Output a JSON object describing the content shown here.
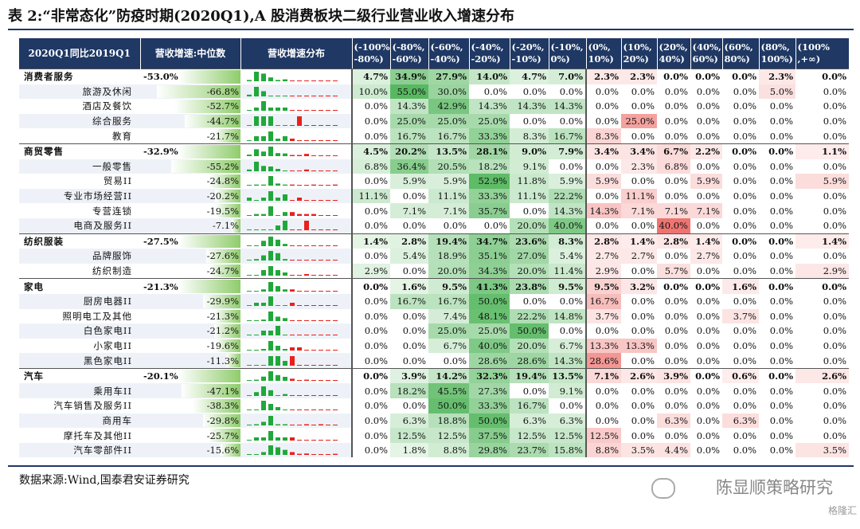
{
  "title": "表 2:“非常态化”防疫时期(2020Q1),A 股消费板块二级行业营业收入增速分布",
  "header": {
    "col1": "2020Q1同比2019Q1",
    "col2": "营收增速:中位数",
    "col3": "营收增速分布",
    "bins": [
      "(-100%, -80%)",
      "(-80%, -60%)",
      "(-60%, -40%)",
      "(-40%, -20%)",
      "(-20%, -10%)",
      "(-10%, 0%)",
      "(0%, 10%)",
      "(10%, 20%)",
      "(20%, 40%)",
      "(40%, 60%)",
      "(60%, 80%)",
      "(80%, 100%)",
      "(100% ,+∞)"
    ]
  },
  "rows": [
    {
      "name": "消费者服务",
      "group": true,
      "median": "-53.0%",
      "m": -53.0,
      "vals": [
        "4.7%",
        "34.9%",
        "27.9%",
        "14.0%",
        "4.7%",
        "7.0%",
        "2.3%",
        "2.3%",
        "0.0%",
        "0.0%",
        "0.0%",
        "2.3%",
        "0.0%"
      ]
    },
    {
      "name": "旅游及休闲",
      "group": false,
      "median": "-66.8%",
      "m": -66.8,
      "vals": [
        "10.0%",
        "55.0%",
        "30.0%",
        "0.0%",
        "0.0%",
        "0.0%",
        "0.0%",
        "0.0%",
        "0.0%",
        "0.0%",
        "0.0%",
        "5.0%",
        "0.0%"
      ]
    },
    {
      "name": "酒店及餐饮",
      "group": false,
      "median": "-52.7%",
      "m": -52.7,
      "vals": [
        "0.0%",
        "14.3%",
        "42.9%",
        "14.3%",
        "14.3%",
        "14.3%",
        "0.0%",
        "0.0%",
        "0.0%",
        "0.0%",
        "0.0%",
        "0.0%",
        "0.0%"
      ]
    },
    {
      "name": "综合服务",
      "group": false,
      "median": "-44.7%",
      "m": -44.7,
      "vals": [
        "0.0%",
        "25.0%",
        "25.0%",
        "25.0%",
        "0.0%",
        "0.0%",
        "0.0%",
        "25.0%",
        "0.0%",
        "0.0%",
        "0.0%",
        "0.0%",
        "0.0%"
      ]
    },
    {
      "name": "教育",
      "group": false,
      "median": "-21.7%",
      "m": -21.7,
      "vals": [
        "0.0%",
        "16.7%",
        "16.7%",
        "33.3%",
        "8.3%",
        "16.7%",
        "8.3%",
        "0.0%",
        "0.0%",
        "0.0%",
        "0.0%",
        "0.0%",
        "0.0%"
      ]
    },
    {
      "name": "商贸零售",
      "group": true,
      "median": "-32.9%",
      "m": -32.9,
      "vals": [
        "4.5%",
        "20.2%",
        "13.5%",
        "28.1%",
        "9.0%",
        "7.9%",
        "3.4%",
        "3.4%",
        "6.7%",
        "2.2%",
        "0.0%",
        "0.0%",
        "1.1%"
      ]
    },
    {
      "name": "一般零售",
      "group": false,
      "median": "-55.2%",
      "m": -55.2,
      "vals": [
        "6.8%",
        "36.4%",
        "20.5%",
        "18.2%",
        "9.1%",
        "0.0%",
        "0.0%",
        "2.3%",
        "6.8%",
        "0.0%",
        "0.0%",
        "0.0%",
        "0.0%"
      ]
    },
    {
      "name": "贸易II",
      "group": false,
      "median": "-24.8%",
      "m": -24.8,
      "vals": [
        "0.0%",
        "5.9%",
        "5.9%",
        "52.9%",
        "11.8%",
        "5.9%",
        "5.9%",
        "0.0%",
        "0.0%",
        "5.9%",
        "0.0%",
        "0.0%",
        "5.9%"
      ]
    },
    {
      "name": "专业市场经营II",
      "group": false,
      "median": "-20.2%",
      "m": -20.2,
      "vals": [
        "11.1%",
        "0.0%",
        "11.1%",
        "33.3%",
        "11.1%",
        "22.2%",
        "0.0%",
        "11.1%",
        "0.0%",
        "0.0%",
        "0.0%",
        "0.0%",
        "0.0%"
      ]
    },
    {
      "name": "专营连锁",
      "group": false,
      "median": "-19.5%",
      "m": -19.5,
      "vals": [
        "0.0%",
        "7.1%",
        "7.1%",
        "35.7%",
        "0.0%",
        "14.3%",
        "14.3%",
        "7.1%",
        "7.1%",
        "7.1%",
        "0.0%",
        "0.0%",
        "0.0%"
      ]
    },
    {
      "name": "电商及服务II",
      "group": false,
      "median": "-7.1%",
      "m": -7.1,
      "vals": [
        "0.0%",
        "0.0%",
        "0.0%",
        "0.0%",
        "20.0%",
        "40.0%",
        "0.0%",
        "0.0%",
        "40.0%",
        "0.0%",
        "0.0%",
        "0.0%",
        "0.0%"
      ]
    },
    {
      "name": "纺织服装",
      "group": true,
      "median": "-27.5%",
      "m": -27.5,
      "vals": [
        "1.4%",
        "2.8%",
        "19.4%",
        "34.7%",
        "23.6%",
        "8.3%",
        "2.8%",
        "1.4%",
        "2.8%",
        "1.4%",
        "0.0%",
        "0.0%",
        "1.4%"
      ]
    },
    {
      "name": "品牌服饰",
      "group": false,
      "median": "-27.6%",
      "m": -27.6,
      "vals": [
        "0.0%",
        "5.4%",
        "18.9%",
        "35.1%",
        "27.0%",
        "5.4%",
        "2.7%",
        "2.7%",
        "0.0%",
        "2.7%",
        "0.0%",
        "0.0%",
        "0.0%"
      ]
    },
    {
      "name": "纺织制造",
      "group": false,
      "median": "-24.7%",
      "m": -24.7,
      "vals": [
        "2.9%",
        "0.0%",
        "20.0%",
        "34.3%",
        "20.0%",
        "11.4%",
        "2.9%",
        "0.0%",
        "5.7%",
        "0.0%",
        "0.0%",
        "0.0%",
        "2.9%"
      ]
    },
    {
      "name": "家电",
      "group": true,
      "median": "-21.3%",
      "m": -21.3,
      "vals": [
        "0.0%",
        "1.6%",
        "9.5%",
        "41.3%",
        "23.8%",
        "9.5%",
        "9.5%",
        "3.2%",
        "0.0%",
        "0.0%",
        "1.6%",
        "0.0%",
        "0.0%"
      ]
    },
    {
      "name": "厨房电器II",
      "group": false,
      "median": "-29.9%",
      "m": -29.9,
      "vals": [
        "0.0%",
        "16.7%",
        "16.7%",
        "50.0%",
        "0.0%",
        "0.0%",
        "16.7%",
        "0.0%",
        "0.0%",
        "0.0%",
        "0.0%",
        "0.0%",
        "0.0%"
      ]
    },
    {
      "name": "照明电工及其他",
      "group": false,
      "median": "-21.3%",
      "m": -21.3,
      "vals": [
        "0.0%",
        "0.0%",
        "7.4%",
        "48.1%",
        "22.2%",
        "14.8%",
        "3.7%",
        "0.0%",
        "0.0%",
        "0.0%",
        "3.7%",
        "0.0%",
        "0.0%"
      ]
    },
    {
      "name": "白色家电II",
      "group": false,
      "median": "-21.2%",
      "m": -21.2,
      "vals": [
        "0.0%",
        "0.0%",
        "25.0%",
        "25.0%",
        "50.0%",
        "0.0%",
        "0.0%",
        "0.0%",
        "0.0%",
        "0.0%",
        "0.0%",
        "0.0%",
        "0.0%"
      ]
    },
    {
      "name": "小家电II",
      "group": false,
      "median": "-19.6%",
      "m": -19.6,
      "vals": [
        "0.0%",
        "0.0%",
        "6.7%",
        "40.0%",
        "20.0%",
        "6.7%",
        "13.3%",
        "13.3%",
        "0.0%",
        "0.0%",
        "0.0%",
        "0.0%",
        "0.0%"
      ]
    },
    {
      "name": "黑色家电II",
      "group": false,
      "median": "-11.3%",
      "m": -11.3,
      "vals": [
        "0.0%",
        "0.0%",
        "0.0%",
        "28.6%",
        "28.6%",
        "14.3%",
        "28.6%",
        "0.0%",
        "0.0%",
        "0.0%",
        "0.0%",
        "0.0%",
        "0.0%"
      ]
    },
    {
      "name": "汽车",
      "group": true,
      "median": "-20.1%",
      "m": -20.1,
      "vals": [
        "0.0%",
        "3.9%",
        "14.2%",
        "32.3%",
        "19.4%",
        "13.5%",
        "7.1%",
        "2.6%",
        "3.9%",
        "0.0%",
        "0.6%",
        "0.0%",
        "2.6%"
      ]
    },
    {
      "name": "乘用车II",
      "group": false,
      "median": "-47.1%",
      "m": -47.1,
      "vals": [
        "0.0%",
        "18.2%",
        "45.5%",
        "27.3%",
        "0.0%",
        "9.1%",
        "0.0%",
        "0.0%",
        "0.0%",
        "0.0%",
        "0.0%",
        "0.0%",
        "0.0%"
      ]
    },
    {
      "name": "汽车销售及服务II",
      "group": false,
      "median": "-38.3%",
      "m": -38.3,
      "vals": [
        "0.0%",
        "0.0%",
        "50.0%",
        "33.3%",
        "16.7%",
        "0.0%",
        "0.0%",
        "0.0%",
        "0.0%",
        "0.0%",
        "0.0%",
        "0.0%",
        "0.0%"
      ]
    },
    {
      "name": "商用车",
      "group": false,
      "median": "-29.8%",
      "m": -29.8,
      "vals": [
        "0.0%",
        "6.3%",
        "18.8%",
        "50.0%",
        "6.3%",
        "6.3%",
        "0.0%",
        "0.0%",
        "6.3%",
        "0.0%",
        "6.3%",
        "0.0%",
        "0.0%"
      ]
    },
    {
      "name": "摩托车及其他II",
      "group": false,
      "median": "-25.7%",
      "m": -25.7,
      "vals": [
        "0.0%",
        "12.5%",
        "12.5%",
        "37.5%",
        "12.5%",
        "12.5%",
        "12.5%",
        "0.0%",
        "0.0%",
        "0.0%",
        "0.0%",
        "0.0%",
        "0.0%"
      ]
    },
    {
      "name": "汽车零部件II",
      "group": false,
      "median": "-15.6%",
      "m": -15.6,
      "vals": [
        "0.0%",
        "1.8%",
        "8.8%",
        "29.8%",
        "23.7%",
        "15.8%",
        "8.8%",
        "3.5%",
        "4.4%",
        "0.0%",
        "0.0%",
        "0.0%",
        "3.5%"
      ]
    }
  ],
  "colors": {
    "header_bg": "#1f3864",
    "neg_heat": "#3fae49",
    "pos_heat": "#e8413c",
    "spark_neg": "#20a83a",
    "spark_pos": "#e8211c",
    "median_bar": "#8fcc6b"
  },
  "source": "数据来源:Wind,国泰君安证券研究",
  "watermark": "陈显顺策略研究",
  "watermark2": "格隆汇"
}
